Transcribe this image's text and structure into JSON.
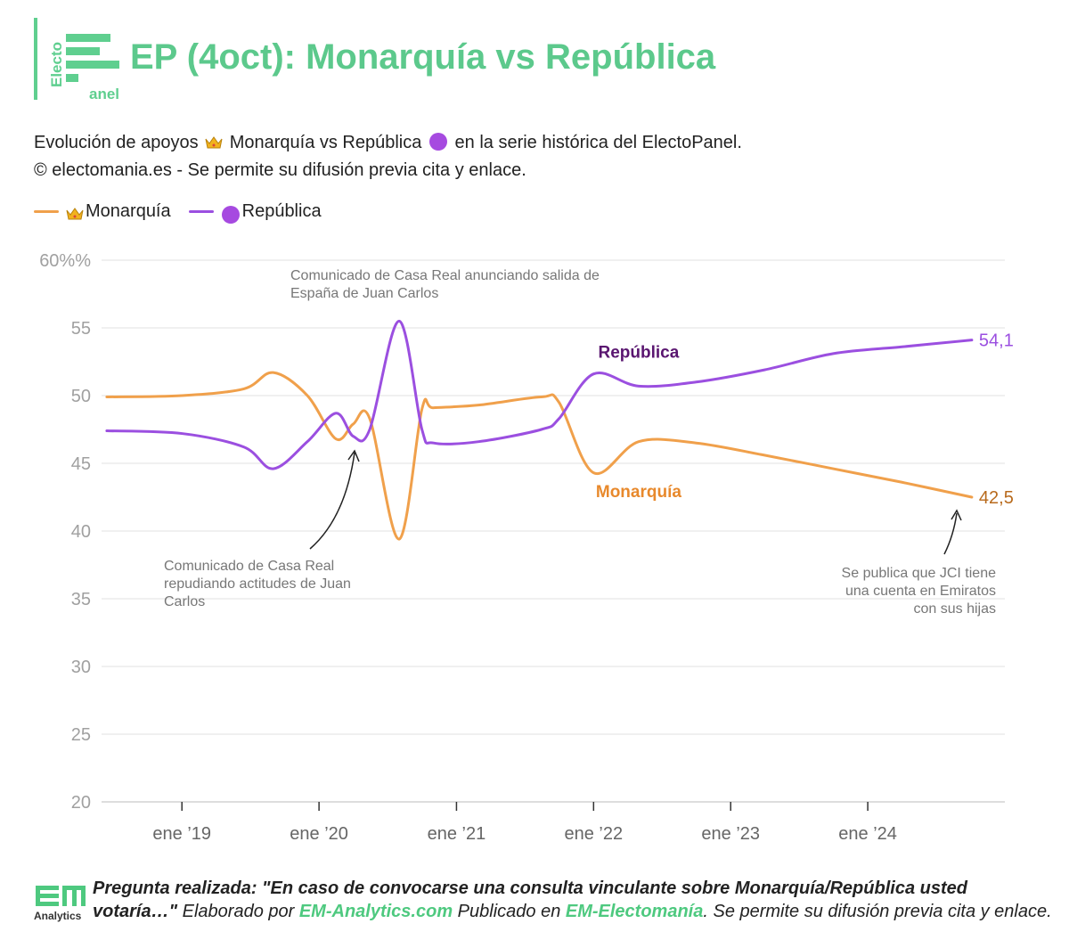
{
  "header": {
    "logo_top": "Electo",
    "logo_bottom": "anel",
    "title": "EP (4oct): Monarquía vs República"
  },
  "subtitle": {
    "line1_a": "Evolución de apoyos",
    "line1_b": "Monarquía vs República",
    "line1_c": "en la serie histórica del ElectoPanel.",
    "line2": "© electomania.es - Se permite su difusión previa cita y enlace."
  },
  "legend": {
    "monarquia": "Monarquía",
    "republica": "República"
  },
  "colors": {
    "brand_green": "#5cc98c",
    "monarquia": "#f0a04b",
    "republica": "#9b4fe0",
    "republica_label": "#5a1670",
    "monarquia_label": "#e8892c"
  },
  "icons": {
    "monarquia": "crown-icon",
    "republica": "purple-circle-icon"
  },
  "chart_data": {
    "type": "line",
    "ylim": [
      20,
      60
    ],
    "yticks": [
      20,
      25,
      30,
      35,
      40,
      45,
      50,
      55,
      60
    ],
    "ytick_labels": [
      "20",
      "25",
      "30",
      "35",
      "40",
      "45",
      "50",
      "55",
      "60%%"
    ],
    "xticks": [
      "2019-01-01",
      "2020-01-01",
      "2021-01-01",
      "2022-01-01",
      "2023-01-01",
      "2024-01-01"
    ],
    "xtick_labels": [
      "ene ’19",
      "ene ’20",
      "ene ’21",
      "ene ’22",
      "ene ’23",
      "ene ’24"
    ],
    "xlim": [
      "2018-06-01",
      "2024-12-31"
    ],
    "grid": true,
    "series": [
      {
        "name": "Monarquía",
        "color": "#f0a04b",
        "x": [
          "2018-06-15",
          "2019-01-01",
          "2019-06-15",
          "2019-09-01",
          "2019-12-01",
          "2020-02-15",
          "2020-04-01",
          "2020-05-15",
          "2020-08-01",
          "2020-10-01",
          "2020-11-01",
          "2021-03-01",
          "2021-08-15",
          "2021-10-01",
          "2022-01-01",
          "2022-05-01",
          "2022-10-01",
          "2023-04-01",
          "2023-10-01",
          "2024-04-01",
          "2024-10-04"
        ],
        "values": [
          49.9,
          50.0,
          50.5,
          51.7,
          50.0,
          46.8,
          47.9,
          48.3,
          39.4,
          49.0,
          49.1,
          49.3,
          49.9,
          49.5,
          44.3,
          46.6,
          46.5,
          45.6,
          44.6,
          43.6,
          42.5
        ]
      },
      {
        "name": "República",
        "color": "#9b4fe0",
        "x": [
          "2018-06-15",
          "2019-01-01",
          "2019-06-15",
          "2019-09-01",
          "2019-12-01",
          "2020-02-15",
          "2020-04-01",
          "2020-05-15",
          "2020-08-01",
          "2020-10-01",
          "2020-11-01",
          "2021-03-01",
          "2021-08-15",
          "2021-10-01",
          "2022-01-01",
          "2022-05-01",
          "2022-10-01",
          "2023-04-01",
          "2023-10-01",
          "2024-04-01",
          "2024-10-04"
        ],
        "values": [
          47.4,
          47.2,
          46.2,
          44.6,
          46.6,
          48.7,
          47.0,
          47.5,
          55.5,
          47.5,
          46.5,
          46.6,
          47.5,
          48.3,
          51.6,
          50.7,
          51.0,
          51.9,
          53.1,
          53.6,
          54.1
        ]
      }
    ],
    "end_labels": {
      "monarquia": "42,5",
      "republica": "54,1"
    },
    "series_labels": {
      "republica": "República",
      "monarquia": "Monarquía"
    },
    "annotations": [
      "Comunicado de Casa Real anunciando salida de España de Juan Carlos",
      "Comunicado de Casa Real repudiando actitudes de Juan Carlos",
      "Se publica que JCI tiene una cuenta en Emiratos con sus hijas"
    ]
  },
  "footer": {
    "logo_text": "Analytics",
    "q_label": "Pregunta realizada: \"En caso de convocarse una consulta vinculante sobre Monarquía/República usted votaría…\"",
    "elaborado": " Elaborado por ",
    "em_analytics": "EM-Analytics.com",
    "publicado": " Publicado en ",
    "em_electomania": "EM-Electomanía",
    "permite": ". Se permite su difusión previa cita y enlace."
  }
}
